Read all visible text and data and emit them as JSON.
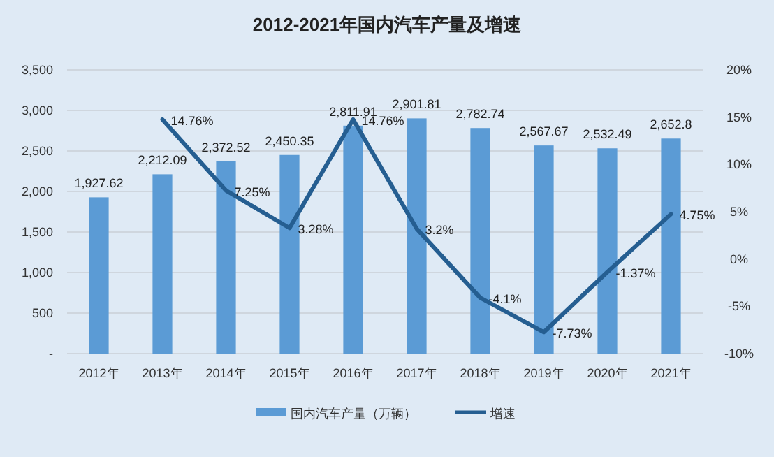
{
  "chart_data": {
    "type": "bar",
    "title": "2012-2021年国内汽车产量及增速",
    "categories": [
      "2012年",
      "2013年",
      "2014年",
      "2015年",
      "2016年",
      "2017年",
      "2018年",
      "2019年",
      "2020年",
      "2021年"
    ],
    "series": [
      {
        "name": "国内汽车产量（万辆）",
        "color": "#5b9bd5",
        "values": [
          1927.62,
          2212.09,
          2372.52,
          2450.35,
          2811.91,
          2901.81,
          2782.74,
          2567.67,
          2532.49,
          2652.8
        ],
        "value_labels": [
          "1,927.62",
          "2,212.09",
          "2,372.52",
          "2,450.35",
          "2,811.91",
          "2,901.81",
          "2,782.74",
          "2,567.67",
          "2,532.49",
          "2,652.8"
        ]
      },
      {
        "name": "增速",
        "type": "line",
        "axis": "y2",
        "color": "#255e91",
        "values": [
          null,
          14.76,
          7.25,
          3.28,
          14.76,
          3.2,
          -4.1,
          -7.73,
          -1.37,
          4.75
        ],
        "value_labels": [
          null,
          "14.76%",
          "7.25%",
          "3.28%",
          "14.76%",
          "3.2%",
          "-4.1%",
          "-7.73%",
          "-1.37%",
          "4.75%"
        ]
      }
    ],
    "ylim": [
      0,
      3500
    ],
    "yticks": [
      {
        "value": 0,
        "label": "-"
      },
      {
        "value": 500,
        "label": "500"
      },
      {
        "value": 1000,
        "label": "1,000"
      },
      {
        "value": 1500,
        "label": "1,500"
      },
      {
        "value": 2000,
        "label": "2,000"
      },
      {
        "value": 2500,
        "label": "2,500"
      },
      {
        "value": 3000,
        "label": "3,000"
      },
      {
        "value": 3500,
        "label": "3,500"
      }
    ],
    "y2lim": [
      -10,
      20
    ],
    "y2ticks": [
      {
        "value": -10,
        "label": "-10%"
      },
      {
        "value": -5,
        "label": "-5%"
      },
      {
        "value": 0,
        "label": "0%"
      },
      {
        "value": 5,
        "label": "5%"
      },
      {
        "value": 10,
        "label": "10%"
      },
      {
        "value": 15,
        "label": "15%"
      },
      {
        "value": 20,
        "label": "20%"
      }
    ],
    "grid": "y",
    "legend": "bottom"
  }
}
